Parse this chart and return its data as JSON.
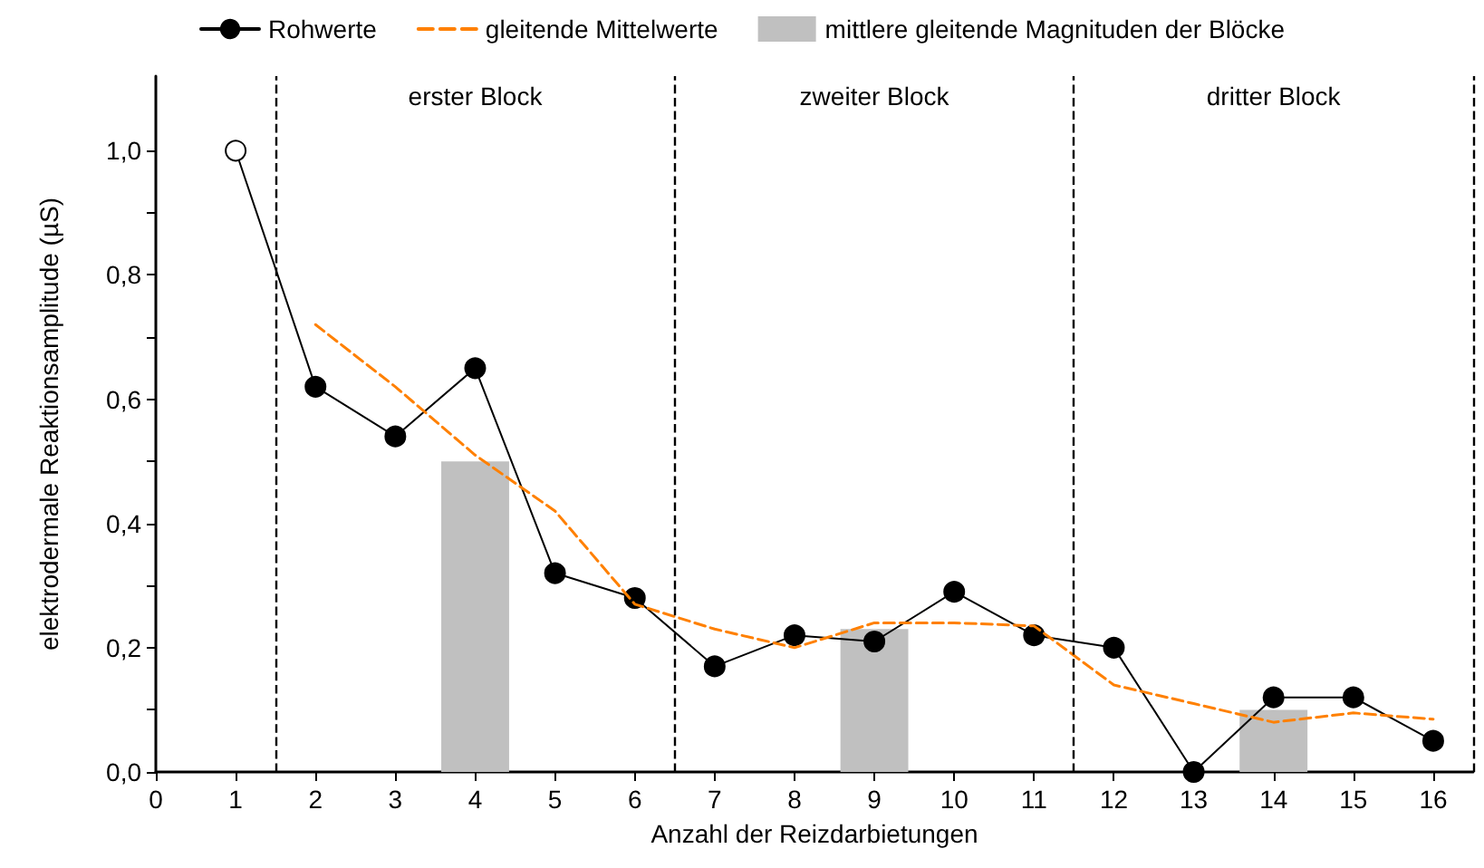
{
  "chart_data": {
    "type": "line",
    "xlabel": "Anzahl der Reizdarbietungen",
    "ylabel": "elektrodermale Reaktionsamplitude (µS)",
    "xlim": [
      0,
      16.5
    ],
    "xticks": [
      0,
      1,
      2,
      3,
      4,
      5,
      6,
      7,
      8,
      9,
      10,
      11,
      12,
      13,
      14,
      15,
      16
    ],
    "ylim": [
      0,
      1.12
    ],
    "yticks": [
      {
        "value": 0,
        "label": "0,0"
      },
      {
        "value": 0.1,
        "label": null
      },
      {
        "value": 0.2,
        "label": "0,2"
      },
      {
        "value": 0.3,
        "label": null
      },
      {
        "value": 0.4,
        "label": "0,4"
      },
      {
        "value": 0.5,
        "label": null
      },
      {
        "value": 0.6,
        "label": "0,6"
      },
      {
        "value": 0.7,
        "label": null
      },
      {
        "value": 0.8,
        "label": "0,8"
      },
      {
        "value": 0.9,
        "label": null
      },
      {
        "value": 1,
        "label": "1,0"
      }
    ],
    "series": [
      {
        "name": "Rohwerte",
        "color": "#000000",
        "marker": "circle",
        "line_style": "solid",
        "colors": [
          "#ffffff",
          "#000000",
          "#000000",
          "#000000",
          "#000000",
          "#000000",
          "#000000",
          "#000000",
          "#000000",
          "#000000",
          "#000000",
          "#000000",
          "#000000",
          "#000000",
          "#000000",
          "#000000"
        ],
        "x": [
          1,
          2,
          3,
          4,
          5,
          6,
          7,
          8,
          9,
          10,
          11,
          12,
          13,
          14,
          15,
          16
        ],
        "values": [
          1.0,
          0.62,
          0.54,
          0.65,
          0.32,
          0.28,
          0.17,
          0.22,
          0.21,
          0.29,
          0.22,
          0.2,
          0.0,
          0.12,
          0.12,
          0.05
        ]
      },
      {
        "name": "gleitende Mittelwerte",
        "type": "line",
        "color": "#ff8000",
        "marker": "none",
        "line_style": "dashed",
        "x": [
          2,
          3,
          4,
          5,
          6,
          7,
          8,
          9,
          10,
          11,
          12,
          13,
          14,
          15,
          16
        ],
        "values": [
          0.72,
          0.62,
          0.51,
          0.42,
          0.27,
          0.23,
          0.2,
          0.24,
          0.24,
          0.235,
          0.14,
          0.11,
          0.08,
          0.095,
          0.085
        ]
      },
      {
        "name": "mittlere gleitende Magnituden der Blöcke",
        "type": "bar",
        "color": "#c0c0c0",
        "x": [
          4,
          9,
          14
        ],
        "values": [
          0.5,
          0.23,
          0.1
        ]
      }
    ],
    "ref_lines": [
      {
        "axis": "x",
        "value": 1.5,
        "line_style": "dashed",
        "color": "#000000"
      },
      {
        "axis": "x",
        "value": 6.5,
        "line_style": "dashed",
        "color": "#000000"
      },
      {
        "axis": "x",
        "value": 11.5,
        "line_style": "dashed",
        "color": "#000000"
      },
      {
        "axis": "x",
        "value": 16.5,
        "line_style": "dashed",
        "color": "#000000"
      }
    ],
    "annotations": [
      "erster Block",
      "zweiter Block",
      "dritter Block"
    ],
    "grid": false,
    "legend": "top"
  }
}
